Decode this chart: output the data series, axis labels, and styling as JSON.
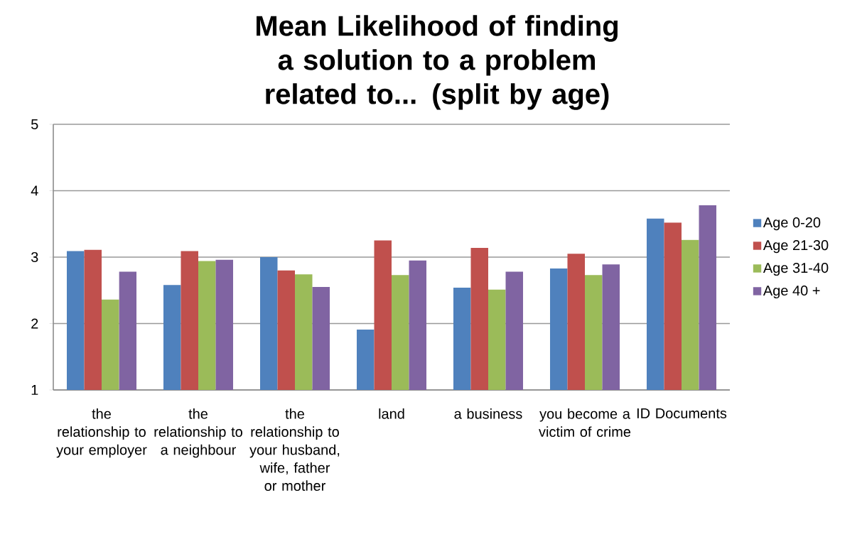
{
  "chart_data": {
    "type": "bar",
    "title": "Mean Likelihood of finding a solution to a problem related to... (split by age)",
    "categories": [
      "the relationship to your employer",
      "the relationship to a neighbour",
      "the relationship to your husband, wife, father or mother",
      "land",
      "a business",
      "you become a victim of crime",
      "ID Documents"
    ],
    "series": [
      {
        "name": "Age 0-20",
        "color": "#4f81bd",
        "values": [
          3.09,
          2.58,
          3.0,
          1.91,
          2.54,
          2.83,
          3.58
        ]
      },
      {
        "name": "Age 21-30",
        "color": "#c0504d",
        "values": [
          3.11,
          3.09,
          2.8,
          3.25,
          3.14,
          3.05,
          3.52
        ]
      },
      {
        "name": "Age 31-40",
        "color": "#9bbb59",
        "values": [
          2.36,
          2.94,
          2.74,
          2.73,
          2.51,
          2.73,
          3.26
        ]
      },
      {
        "name": "Age 40 +",
        "color": "#8064a2",
        "values": [
          2.78,
          2.96,
          2.55,
          2.95,
          2.78,
          2.89,
          3.78
        ]
      }
    ],
    "ylim": [
      1,
      5
    ],
    "yticks": [
      1,
      2,
      3,
      4,
      5
    ],
    "grid": "y",
    "legend": "right"
  }
}
